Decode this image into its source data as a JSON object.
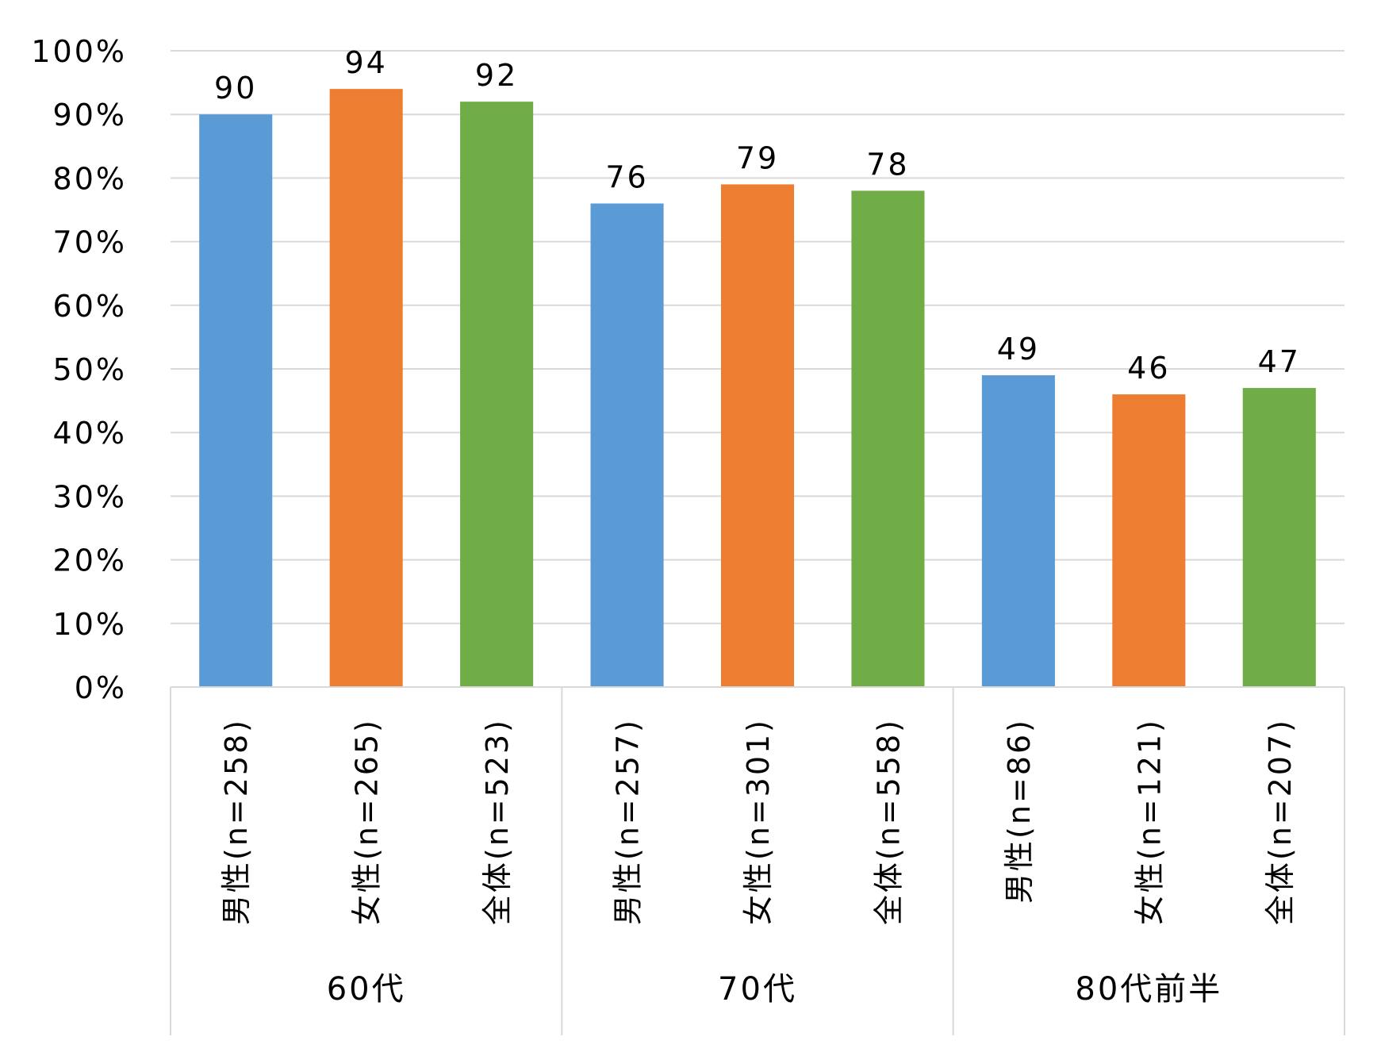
{
  "chart_data": {
    "type": "bar",
    "y_ticks": [
      "0%",
      "10%",
      "20%",
      "30%",
      "40%",
      "50%",
      "60%",
      "70%",
      "80%",
      "90%",
      "100%"
    ],
    "ylim": [
      0,
      100
    ],
    "grid": true,
    "legend": "none",
    "groups": [
      {
        "label": "60代",
        "bars": [
          {
            "category": "男性(n=258)",
            "value": 90,
            "label": "90",
            "color": "#5b9bd5"
          },
          {
            "category": "女性(n=265)",
            "value": 94,
            "label": "94",
            "color": "#ed7d31"
          },
          {
            "category": "全体(n=523)",
            "value": 92,
            "label": "92",
            "color": "#70ad47"
          }
        ]
      },
      {
        "label": "70代",
        "bars": [
          {
            "category": "男性(n=257)",
            "value": 76,
            "label": "76",
            "color": "#5b9bd5"
          },
          {
            "category": "女性(n=301)",
            "value": 79,
            "label": "79",
            "color": "#ed7d31"
          },
          {
            "category": "全体(n=558)",
            "value": 78,
            "label": "78",
            "color": "#70ad47"
          }
        ]
      },
      {
        "label": "80代前半",
        "bars": [
          {
            "category": "男性(n=86)",
            "value": 49,
            "label": "49",
            "color": "#5b9bd5"
          },
          {
            "category": "女性(n=121)",
            "value": 46,
            "label": "46",
            "color": "#ed7d31"
          },
          {
            "category": "全体(n=207)",
            "value": 47,
            "label": "47",
            "color": "#70ad47"
          }
        ]
      }
    ]
  }
}
